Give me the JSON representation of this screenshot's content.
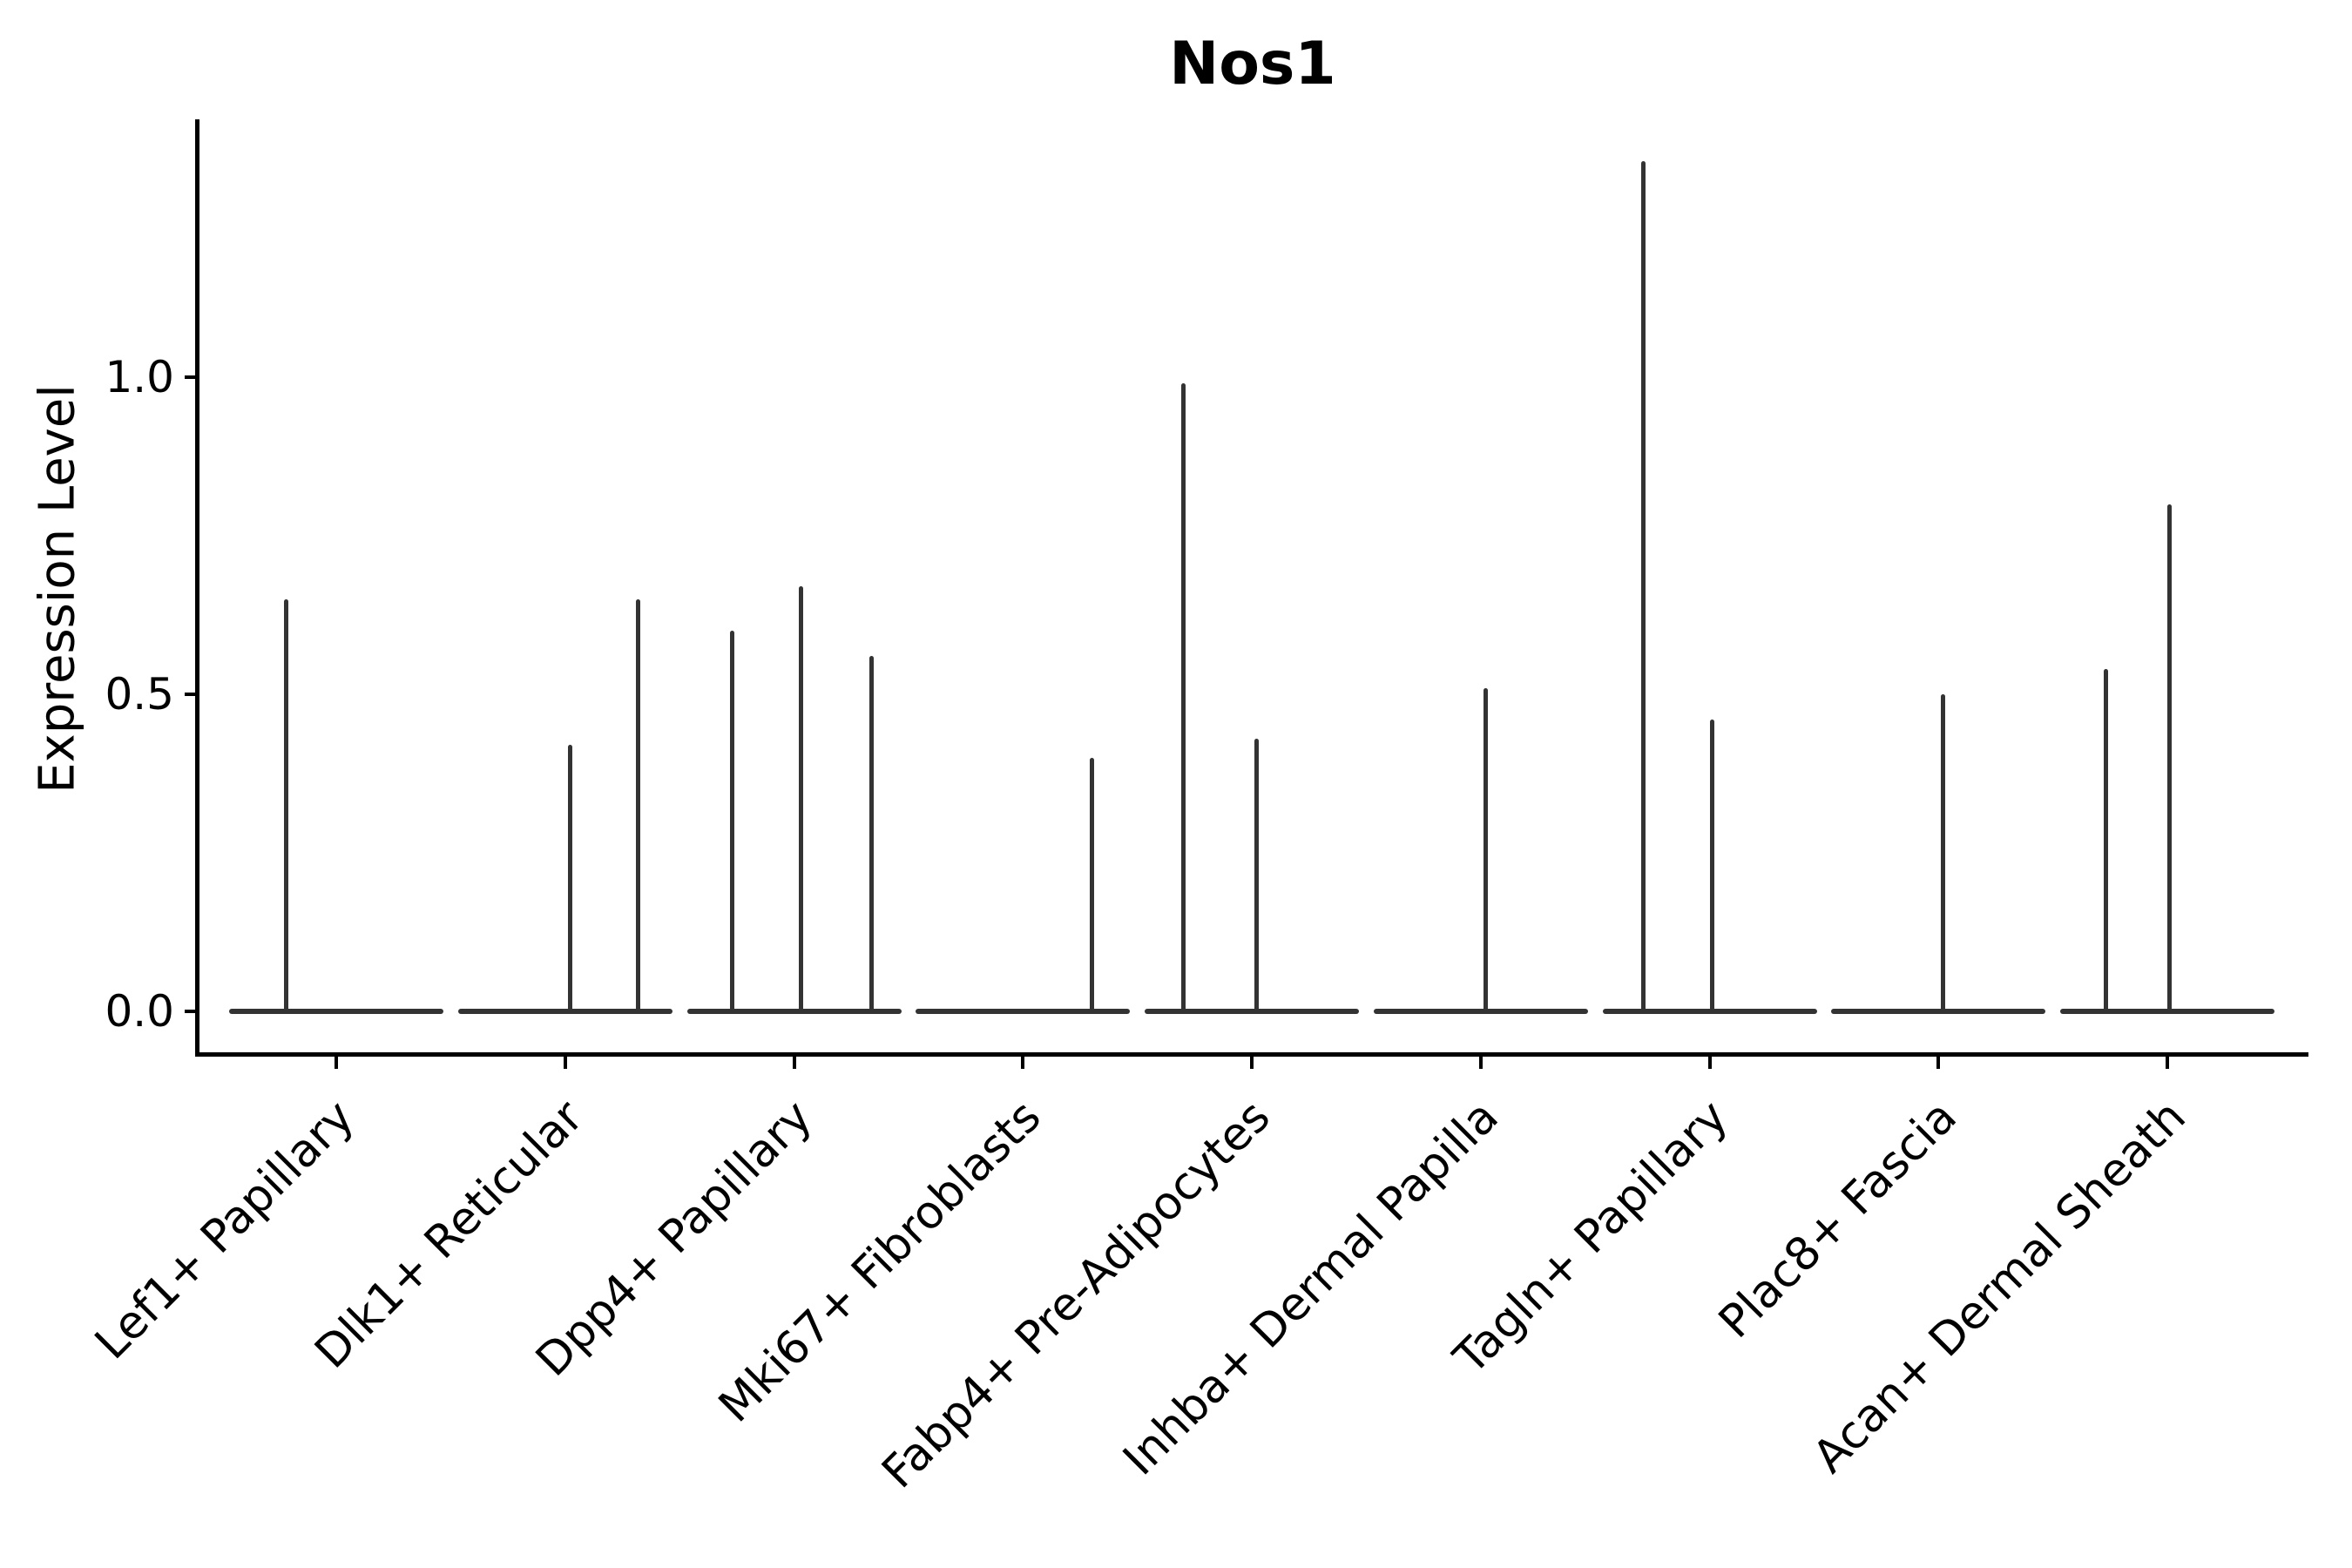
{
  "figure": {
    "title": "Nos1",
    "ylabel": "Expression Level"
  },
  "chart_data": {
    "type": "violin",
    "title": "Nos1",
    "xlabel": "",
    "ylabel": "Expression Level",
    "ylim": [
      -0.07,
      1.41
    ],
    "grid": false,
    "legend": null,
    "yticks": [
      {
        "label": "0.0",
        "value": 0.0
      },
      {
        "label": "0.5",
        "value": 0.5
      },
      {
        "label": "1.0",
        "value": 1.0
      }
    ],
    "note": "Each category is a collapsed violin: flat baseline at expression 0 with thin density spikes; offset is fraction of category spacing from category center; value is expression level at spike top.",
    "categories": [
      {
        "label": "Lef1+ Papillary",
        "baseline_value": 0.0,
        "spikes": [
          {
            "offset": -0.22,
            "value": 0.65
          }
        ]
      },
      {
        "label": "Dlk1+ Reticular",
        "baseline_value": 0.0,
        "spikes": [
          {
            "offset": 0.02,
            "value": 0.42
          },
          {
            "offset": 0.32,
            "value": 0.65
          }
        ]
      },
      {
        "label": "Dpp4+ Papillary",
        "baseline_value": 0.0,
        "spikes": [
          {
            "offset": -0.27,
            "value": 0.6
          },
          {
            "offset": 0.03,
            "value": 0.67
          },
          {
            "offset": 0.34,
            "value": 0.56
          }
        ]
      },
      {
        "label": "Mki67+ Fibroblasts",
        "baseline_value": 0.0,
        "spikes": [
          {
            "offset": 0.3,
            "value": 0.4
          }
        ]
      },
      {
        "label": "Fabp4+ Pre-Adipocytes",
        "baseline_value": 0.0,
        "spikes": [
          {
            "offset": -0.3,
            "value": 0.99
          },
          {
            "offset": 0.02,
            "value": 0.43
          }
        ]
      },
      {
        "label": "Inhba+ Dermal Papilla",
        "baseline_value": 0.0,
        "spikes": [
          {
            "offset": 0.02,
            "value": 0.51
          }
        ]
      },
      {
        "label": "Tagln+ Papillary",
        "baseline_value": 0.0,
        "spikes": [
          {
            "offset": -0.29,
            "value": 1.34
          },
          {
            "offset": 0.01,
            "value": 0.46
          }
        ]
      },
      {
        "label": "Plac8+ Fascia",
        "baseline_value": 0.0,
        "spikes": [
          {
            "offset": 0.02,
            "value": 0.5
          }
        ]
      },
      {
        "label": "Acan+ Dermal Sheath",
        "baseline_value": 0.0,
        "spikes": [
          {
            "offset": -0.27,
            "value": 0.54
          },
          {
            "offset": 0.01,
            "value": 0.8
          }
        ]
      }
    ]
  },
  "colors": {
    "background": "#ffffff",
    "axis": "#000000",
    "text": "#000000",
    "violin": "#333333"
  }
}
